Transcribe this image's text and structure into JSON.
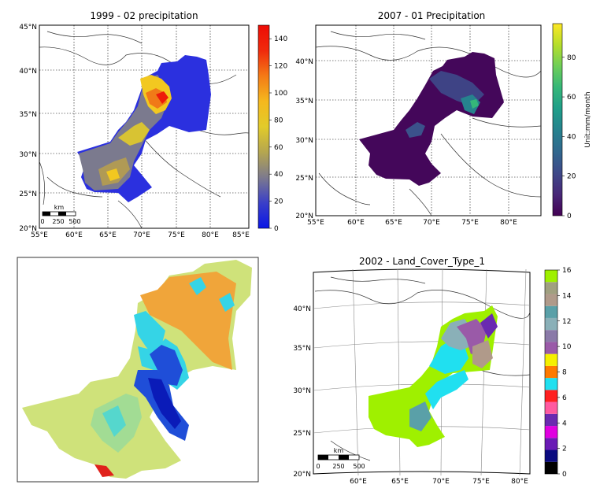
{
  "panels": {
    "p1": {
      "title": "1999 - 02 precipitation",
      "lon_labels": [
        "55°E",
        "60°E",
        "65°E",
        "70°E",
        "75°E",
        "80°E",
        "85°E"
      ],
      "lat_labels": [
        "45°N",
        "40°N",
        "35°N",
        "30°N",
        "25°N",
        "20°N"
      ],
      "colorbar_ticks": [
        "0",
        "20",
        "40",
        "60",
        "80",
        "100",
        "120",
        "140"
      ],
      "colormap": [
        "#0a16e6",
        "#3a3fc8",
        "#7d7a8d",
        "#b5a64f",
        "#e2cb2a",
        "#f5b81d",
        "#f47a16",
        "#f02a0c",
        "#ee0c06"
      ],
      "scale_unit": "km",
      "scale_ticks": [
        "0",
        "250",
        "500"
      ]
    },
    "p2": {
      "title": "2007 - 01 Precipitation",
      "lon_labels": [
        "55°E",
        "60°E",
        "65°E",
        "70°E",
        "75°E",
        "80°E"
      ],
      "lat_labels": [
        "40°N",
        "35°N",
        "30°N",
        "25°N",
        "20°N"
      ],
      "colorbar_ticks": [
        "0",
        "20",
        "40",
        "60",
        "80"
      ],
      "colorbar_label": "Unit:mm/month",
      "colormap": [
        "#440154",
        "#482878",
        "#3e4989",
        "#31688e",
        "#26828e",
        "#1f9e89",
        "#35b779",
        "#6ece58",
        "#b5de2b",
        "#fde725"
      ]
    },
    "p3": {
      "colors": {
        "dominant": "#cfe27a",
        "orange": "#f0a53a",
        "cyan": "#35d4e6",
        "blue": "#1f4ed8",
        "deep_blue": "#0a1bb8",
        "red": "#e0221c"
      }
    },
    "p4": {
      "title": "2002 -  Land_Cover_Type_1",
      "lon_labels": [
        "60°E",
        "65°E",
        "70°E",
        "75°E",
        "80°E"
      ],
      "lat_labels": [
        "40°N",
        "35°N",
        "30°N",
        "25°N",
        "20°N"
      ],
      "colorbar_ticks": [
        "0",
        "2",
        "4",
        "6",
        "8",
        "10",
        "12",
        "14",
        "16"
      ],
      "classes": [
        "#000000",
        "#0a0a80",
        "#6a1bb5",
        "#e000e0",
        "#6a2ab0",
        "#ff5aa0",
        "#ff2020",
        "#20e0f0",
        "#ff7a00",
        "#f5f000",
        "#9a5aa8",
        "#8a7aa8",
        "#8ab0b8",
        "#5aa0a8",
        "#b09a8a",
        "#a0a080",
        "#9ff000"
      ],
      "scale_unit": "km",
      "scale_ticks": [
        "0",
        "250",
        "500"
      ]
    }
  }
}
